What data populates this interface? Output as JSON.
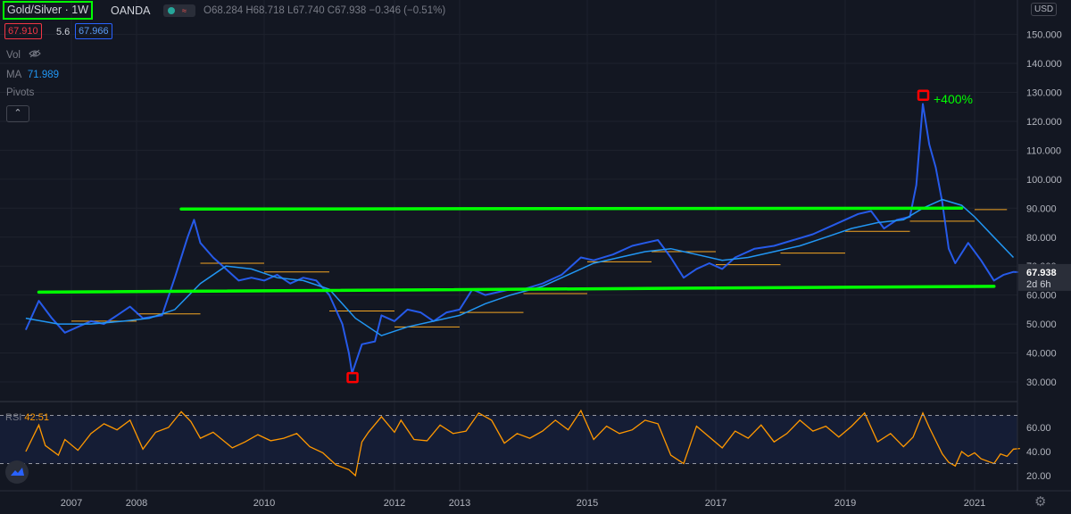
{
  "header": {
    "symbol": "Gold/Silver · 1W",
    "broker": "OANDA",
    "ohlc": {
      "o": "O68.284",
      "h": "H68.718",
      "l": "L67.740",
      "c": "C67.938",
      "chg": "−0.346 (−0.51%)"
    },
    "bid": "67.910",
    "spread": "5.6",
    "ask": "67.966",
    "vol_label": "Vol",
    "ma_label": "MA",
    "ma_value": "71.989",
    "pivots_label": "Pivots",
    "currency": "USD",
    "rsi_label": "RSI",
    "rsi_value": "42.51"
  },
  "colors": {
    "bg": "#131722",
    "price": "#2962ff",
    "ma": "#2196f3",
    "trend": "#00ff00",
    "pivot": "#f5a623",
    "rsi": "#ff9800",
    "marker": "#ff0000",
    "text": "#b2b5be"
  },
  "annotations": {
    "gain": "+400%"
  },
  "chart_data": [
    {
      "type": "line",
      "title": "Gold/Silver · 1W",
      "x_unit": "year",
      "ylim": [
        25,
        152
      ],
      "y_ticks": [
        30,
        40,
        50,
        60,
        70,
        80,
        90,
        100,
        110,
        120,
        130,
        140,
        150
      ],
      "y_tick_labels": [
        "30.000",
        "40.000",
        "50.000",
        "60.000",
        "70.000",
        "80.000",
        "90.000",
        "100.000",
        "110.000",
        "120.000",
        "130.000",
        "140.000",
        "150.000"
      ],
      "x_ticks": [
        2007,
        2008,
        2010,
        2012,
        2013,
        2015,
        2017,
        2019,
        2021
      ],
      "last_price": "67.938",
      "countdown": "2d 6h",
      "series": [
        {
          "name": "Gold/Silver",
          "points": [
            [
              2006.3,
              48
            ],
            [
              2006.5,
              58
            ],
            [
              2006.7,
              52
            ],
            [
              2006.9,
              47
            ],
            [
              2007.1,
              49
            ],
            [
              2007.3,
              51
            ],
            [
              2007.5,
              50
            ],
            [
              2007.7,
              53
            ],
            [
              2007.9,
              56
            ],
            [
              2008.1,
              52
            ],
            [
              2008.4,
              53
            ],
            [
              2008.6,
              66
            ],
            [
              2008.8,
              80
            ],
            [
              2008.9,
              86
            ],
            [
              2009.0,
              78
            ],
            [
              2009.2,
              73
            ],
            [
              2009.4,
              69
            ],
            [
              2009.6,
              65
            ],
            [
              2009.8,
              66
            ],
            [
              2010.0,
              65
            ],
            [
              2010.2,
              67
            ],
            [
              2010.4,
              64
            ],
            [
              2010.6,
              66
            ],
            [
              2010.8,
              65
            ],
            [
              2011.0,
              60
            ],
            [
              2011.2,
              50
            ],
            [
              2011.3,
              40
            ],
            [
              2011.35,
              33
            ],
            [
              2011.5,
              43
            ],
            [
              2011.7,
              44
            ],
            [
              2011.8,
              53
            ],
            [
              2012.0,
              51
            ],
            [
              2012.2,
              55
            ],
            [
              2012.4,
              54
            ],
            [
              2012.6,
              51
            ],
            [
              2012.8,
              54
            ],
            [
              2013.0,
              55
            ],
            [
              2013.2,
              62
            ],
            [
              2013.4,
              60
            ],
            [
              2013.6,
              61
            ],
            [
              2013.8,
              62
            ],
            [
              2014.0,
              62
            ],
            [
              2014.3,
              64
            ],
            [
              2014.6,
              67
            ],
            [
              2014.9,
              73
            ],
            [
              2015.1,
              72
            ],
            [
              2015.4,
              74
            ],
            [
              2015.7,
              77
            ],
            [
              2015.9,
              78
            ],
            [
              2016.1,
              79
            ],
            [
              2016.3,
              73
            ],
            [
              2016.5,
              66
            ],
            [
              2016.7,
              69
            ],
            [
              2016.9,
              71
            ],
            [
              2017.1,
              69
            ],
            [
              2017.3,
              73
            ],
            [
              2017.6,
              76
            ],
            [
              2017.9,
              77
            ],
            [
              2018.2,
              79
            ],
            [
              2018.5,
              81
            ],
            [
              2018.8,
              84
            ],
            [
              2019.0,
              86
            ],
            [
              2019.2,
              88
            ],
            [
              2019.4,
              89
            ],
            [
              2019.6,
              83
            ],
            [
              2019.8,
              86
            ],
            [
              2020.0,
              87
            ],
            [
              2020.1,
              98
            ],
            [
              2020.2,
              126
            ],
            [
              2020.3,
              112
            ],
            [
              2020.4,
              104
            ],
            [
              2020.5,
              92
            ],
            [
              2020.6,
              76
            ],
            [
              2020.7,
              71
            ],
            [
              2020.9,
              78
            ],
            [
              2021.1,
              72
            ],
            [
              2021.3,
              65
            ],
            [
              2021.45,
              67
            ],
            [
              2021.6,
              68
            ],
            [
              2021.7,
              67.9
            ]
          ]
        },
        {
          "name": "MA",
          "points": [
            [
              2006.3,
              52
            ],
            [
              2006.8,
              50
            ],
            [
              2007.3,
              50
            ],
            [
              2007.8,
              51
            ],
            [
              2008.2,
              52
            ],
            [
              2008.6,
              55
            ],
            [
              2009.0,
              64
            ],
            [
              2009.4,
              70
            ],
            [
              2009.8,
              69
            ],
            [
              2010.2,
              66
            ],
            [
              2010.6,
              65
            ],
            [
              2011.0,
              62
            ],
            [
              2011.4,
              52
            ],
            [
              2011.8,
              46
            ],
            [
              2012.2,
              49
            ],
            [
              2012.6,
              51
            ],
            [
              2013.0,
              53
            ],
            [
              2013.4,
              57
            ],
            [
              2013.8,
              60
            ],
            [
              2014.3,
              63
            ],
            [
              2014.7,
              67
            ],
            [
              2015.1,
              71
            ],
            [
              2015.5,
              73
            ],
            [
              2015.9,
              75
            ],
            [
              2016.3,
              76
            ],
            [
              2016.7,
              74
            ],
            [
              2017.1,
              72
            ],
            [
              2017.5,
              73
            ],
            [
              2017.9,
              75
            ],
            [
              2018.3,
              77
            ],
            [
              2018.7,
              80
            ],
            [
              2019.1,
              83
            ],
            [
              2019.5,
              85
            ],
            [
              2019.9,
              86
            ],
            [
              2020.2,
              90
            ],
            [
              2020.5,
              93
            ],
            [
              2020.8,
              91
            ],
            [
              2021.0,
              87
            ],
            [
              2021.3,
              80
            ],
            [
              2021.6,
              73
            ]
          ]
        }
      ],
      "trendlines": [
        {
          "from": [
            2008.7,
            89.7
          ],
          "to": [
            2020.8,
            90.0
          ]
        },
        {
          "from": [
            2006.5,
            61.0
          ],
          "to": [
            2021.3,
            63.0
          ]
        }
      ],
      "pivot_levels": [
        {
          "from": 2007.0,
          "to": 2008.0,
          "y": 51.0
        },
        {
          "from": 2008.0,
          "to": 2009.0,
          "y": 53.5
        },
        {
          "from": 2009.0,
          "to": 2010.0,
          "y": 71.0
        },
        {
          "from": 2010.0,
          "to": 2011.0,
          "y": 68.0
        },
        {
          "from": 2011.0,
          "to": 2012.0,
          "y": 54.5
        },
        {
          "from": 2012.0,
          "to": 2013.0,
          "y": 49.0
        },
        {
          "from": 2013.0,
          "to": 2014.0,
          "y": 54.0
        },
        {
          "from": 2014.0,
          "to": 2015.0,
          "y": 60.5
        },
        {
          "from": 2015.0,
          "to": 2016.0,
          "y": 71.5
        },
        {
          "from": 2016.0,
          "to": 2017.0,
          "y": 75.0
        },
        {
          "from": 2017.0,
          "to": 2018.0,
          "y": 70.5
        },
        {
          "from": 2018.0,
          "to": 2019.0,
          "y": 74.5
        },
        {
          "from": 2019.0,
          "to": 2020.0,
          "y": 82.0
        },
        {
          "from": 2020.0,
          "to": 2021.0,
          "y": 85.5
        },
        {
          "from": 2021.0,
          "to": 2021.5,
          "y": 89.5
        }
      ],
      "markers": [
        {
          "x": 2011.35,
          "y": 31.5
        },
        {
          "x": 2020.2,
          "y": 129
        }
      ]
    },
    {
      "type": "line",
      "title": "RSI",
      "ylim": [
        15,
        80
      ],
      "y_ticks": [
        20,
        40,
        60
      ],
      "y_tick_labels": [
        "20.00",
        "40.00",
        "60.00"
      ],
      "bands": [
        30,
        70
      ],
      "series": [
        {
          "name": "RSI",
          "points": [
            [
              2006.3,
              40
            ],
            [
              2006.5,
              62
            ],
            [
              2006.6,
              45
            ],
            [
              2006.8,
              37
            ],
            [
              2006.9,
              50
            ],
            [
              2007.1,
              41
            ],
            [
              2007.3,
              55
            ],
            [
              2007.5,
              63
            ],
            [
              2007.7,
              58
            ],
            [
              2007.9,
              66
            ],
            [
              2008.1,
              42
            ],
            [
              2008.3,
              56
            ],
            [
              2008.5,
              60
            ],
            [
              2008.7,
              73
            ],
            [
              2008.85,
              65
            ],
            [
              2009.0,
              51
            ],
            [
              2009.2,
              56
            ],
            [
              2009.5,
              43
            ],
            [
              2009.7,
              48
            ],
            [
              2009.9,
              54
            ],
            [
              2010.1,
              49
            ],
            [
              2010.3,
              51
            ],
            [
              2010.5,
              55
            ],
            [
              2010.7,
              44
            ],
            [
              2010.9,
              39
            ],
            [
              2011.1,
              29
            ],
            [
              2011.3,
              25
            ],
            [
              2011.4,
              20
            ],
            [
              2011.5,
              48
            ],
            [
              2011.6,
              56
            ],
            [
              2011.8,
              69
            ],
            [
              2012.0,
              56
            ],
            [
              2012.1,
              66
            ],
            [
              2012.3,
              50
            ],
            [
              2012.5,
              49
            ],
            [
              2012.7,
              62
            ],
            [
              2012.9,
              55
            ],
            [
              2013.1,
              57
            ],
            [
              2013.3,
              72
            ],
            [
              2013.5,
              66
            ],
            [
              2013.7,
              47
            ],
            [
              2013.9,
              55
            ],
            [
              2014.1,
              51
            ],
            [
              2014.3,
              57
            ],
            [
              2014.5,
              66
            ],
            [
              2014.7,
              58
            ],
            [
              2014.9,
              74
            ],
            [
              2015.1,
              50
            ],
            [
              2015.3,
              61
            ],
            [
              2015.5,
              55
            ],
            [
              2015.7,
              58
            ],
            [
              2015.9,
              66
            ],
            [
              2016.1,
              63
            ],
            [
              2016.3,
              37
            ],
            [
              2016.5,
              30
            ],
            [
              2016.7,
              61
            ],
            [
              2016.9,
              52
            ],
            [
              2017.1,
              43
            ],
            [
              2017.3,
              57
            ],
            [
              2017.5,
              51
            ],
            [
              2017.7,
              62
            ],
            [
              2017.9,
              48
            ],
            [
              2018.1,
              55
            ],
            [
              2018.3,
              66
            ],
            [
              2018.5,
              57
            ],
            [
              2018.7,
              61
            ],
            [
              2018.9,
              52
            ],
            [
              2019.1,
              61
            ],
            [
              2019.3,
              72
            ],
            [
              2019.5,
              48
            ],
            [
              2019.7,
              55
            ],
            [
              2019.9,
              44
            ],
            [
              2020.05,
              52
            ],
            [
              2020.2,
              72
            ],
            [
              2020.3,
              60
            ],
            [
              2020.5,
              38
            ],
            [
              2020.6,
              31
            ],
            [
              2020.7,
              28
            ],
            [
              2020.8,
              40
            ],
            [
              2020.9,
              36
            ],
            [
              2021.0,
              39
            ],
            [
              2021.1,
              34
            ],
            [
              2021.3,
              30
            ],
            [
              2021.4,
              38
            ],
            [
              2021.5,
              36
            ],
            [
              2021.6,
              42
            ],
            [
              2021.7,
              42.5
            ]
          ]
        }
      ]
    }
  ]
}
